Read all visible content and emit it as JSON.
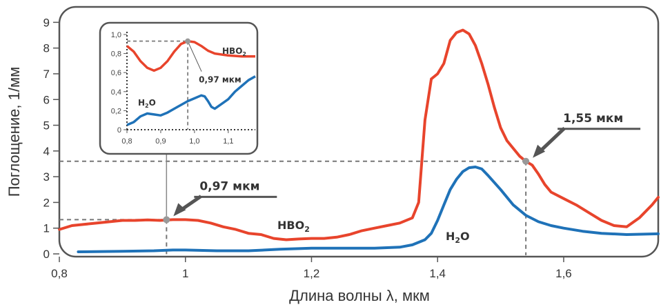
{
  "chart_data": {
    "type": "line",
    "xlabel": "Длина волны λ, мкм",
    "ylabel": "Поглощение, 1/мм",
    "xlim": [
      0.8,
      1.75
    ],
    "ylim": [
      0,
      9.6
    ],
    "xticks": [
      {
        "v": 0.8,
        "label": "0,8"
      },
      {
        "v": 1.0,
        "label": "1"
      },
      {
        "v": 1.2,
        "label": "1,2"
      },
      {
        "v": 1.4,
        "label": "1,4"
      },
      {
        "v": 1.6,
        "label": "1,6"
      }
    ],
    "yticks": [
      {
        "v": 0,
        "label": "0"
      },
      {
        "v": 1,
        "label": "1"
      },
      {
        "v": 2,
        "label": "2"
      },
      {
        "v": 3,
        "label": "3"
      },
      {
        "v": 4,
        "label": "4"
      },
      {
        "v": 5,
        "label": "5"
      },
      {
        "v": 6,
        "label": "6"
      },
      {
        "v": 7,
        "label": "7"
      },
      {
        "v": 8,
        "label": "8"
      },
      {
        "v": 9,
        "label": "9"
      }
    ],
    "grid": false,
    "series": [
      {
        "name": "HBO₂",
        "label_main": "HBO",
        "label_sub": "2",
        "color": "#e8442c",
        "points": [
          [
            0.8,
            0.95
          ],
          [
            0.82,
            1.1
          ],
          [
            0.84,
            1.15
          ],
          [
            0.86,
            1.2
          ],
          [
            0.88,
            1.25
          ],
          [
            0.9,
            1.3
          ],
          [
            0.92,
            1.3
          ],
          [
            0.94,
            1.32
          ],
          [
            0.96,
            1.3
          ],
          [
            0.98,
            1.33
          ],
          [
            1.0,
            1.33
          ],
          [
            1.02,
            1.3
          ],
          [
            1.04,
            1.2
          ],
          [
            1.06,
            1.05
          ],
          [
            1.08,
            0.95
          ],
          [
            1.1,
            0.8
          ],
          [
            1.12,
            0.75
          ],
          [
            1.14,
            0.6
          ],
          [
            1.16,
            0.55
          ],
          [
            1.18,
            0.58
          ],
          [
            1.2,
            0.6
          ],
          [
            1.22,
            0.6
          ],
          [
            1.24,
            0.65
          ],
          [
            1.26,
            0.75
          ],
          [
            1.28,
            0.9
          ],
          [
            1.3,
            1.0
          ],
          [
            1.32,
            1.1
          ],
          [
            1.34,
            1.2
          ],
          [
            1.36,
            1.4
          ],
          [
            1.37,
            2.0
          ],
          [
            1.38,
            5.2
          ],
          [
            1.39,
            6.8
          ],
          [
            1.4,
            7.0
          ],
          [
            1.41,
            7.4
          ],
          [
            1.42,
            8.3
          ],
          [
            1.43,
            8.6
          ],
          [
            1.44,
            8.7
          ],
          [
            1.45,
            8.55
          ],
          [
            1.46,
            8.1
          ],
          [
            1.47,
            7.4
          ],
          [
            1.48,
            6.6
          ],
          [
            1.49,
            5.7
          ],
          [
            1.5,
            4.9
          ],
          [
            1.51,
            4.4
          ],
          [
            1.52,
            4.1
          ],
          [
            1.53,
            3.8
          ],
          [
            1.54,
            3.6
          ],
          [
            1.55,
            3.45
          ],
          [
            1.56,
            3.1
          ],
          [
            1.57,
            2.7
          ],
          [
            1.58,
            2.4
          ],
          [
            1.6,
            2.15
          ],
          [
            1.62,
            1.9
          ],
          [
            1.64,
            1.6
          ],
          [
            1.66,
            1.3
          ],
          [
            1.68,
            1.1
          ],
          [
            1.7,
            1.05
          ],
          [
            1.72,
            1.4
          ],
          [
            1.74,
            1.9
          ],
          [
            1.75,
            2.2
          ]
        ]
      },
      {
        "name": "H₂O",
        "label_main": "H",
        "label_sub": "2",
        "label_tail": "O",
        "color": "#1f72b8",
        "points": [
          [
            0.83,
            0.08
          ],
          [
            0.9,
            0.1
          ],
          [
            0.95,
            0.12
          ],
          [
            0.98,
            0.15
          ],
          [
            1.0,
            0.15
          ],
          [
            1.05,
            0.12
          ],
          [
            1.1,
            0.12
          ],
          [
            1.15,
            0.18
          ],
          [
            1.2,
            0.22
          ],
          [
            1.25,
            0.22
          ],
          [
            1.3,
            0.22
          ],
          [
            1.34,
            0.26
          ],
          [
            1.36,
            0.35
          ],
          [
            1.38,
            0.55
          ],
          [
            1.39,
            0.8
          ],
          [
            1.4,
            1.3
          ],
          [
            1.41,
            1.9
          ],
          [
            1.42,
            2.5
          ],
          [
            1.43,
            2.9
          ],
          [
            1.44,
            3.2
          ],
          [
            1.45,
            3.35
          ],
          [
            1.46,
            3.38
          ],
          [
            1.47,
            3.3
          ],
          [
            1.48,
            3.05
          ],
          [
            1.5,
            2.5
          ],
          [
            1.52,
            1.9
          ],
          [
            1.54,
            1.5
          ],
          [
            1.56,
            1.25
          ],
          [
            1.58,
            1.1
          ],
          [
            1.6,
            1.0
          ],
          [
            1.63,
            0.88
          ],
          [
            1.66,
            0.8
          ],
          [
            1.7,
            0.75
          ],
          [
            1.75,
            0.78
          ]
        ]
      }
    ],
    "annotations": [
      {
        "text": "0,97 мкм",
        "x": 0.97,
        "y": 1.33
      },
      {
        "text": "1,55 мкм",
        "x": 1.54,
        "y": 3.6
      }
    ],
    "inset": {
      "xlim": [
        0.8,
        1.18
      ],
      "ylim": [
        0,
        1.0
      ],
      "xticks": [
        {
          "v": 0.8,
          "label": "0,8"
        },
        {
          "v": 0.9,
          "label": "0,9"
        },
        {
          "v": 1.0,
          "label": "1,0"
        },
        {
          "v": 1.1,
          "label": "1,1"
        }
      ],
      "yticks": [
        {
          "v": 0,
          "label": "0"
        },
        {
          "v": 0.2,
          "label": "0,2"
        },
        {
          "v": 0.4,
          "label": "0,4"
        },
        {
          "v": 0.6,
          "label": "0,6"
        },
        {
          "v": 0.8,
          "label": "0,8"
        },
        {
          "v": 1.0,
          "label": "1,0"
        }
      ],
      "annotation": {
        "text": "0,97 мкм",
        "x": 0.98,
        "y": 0.93
      },
      "hbo2_points": [
        [
          0.8,
          0.88
        ],
        [
          0.82,
          0.82
        ],
        [
          0.84,
          0.72
        ],
        [
          0.86,
          0.65
        ],
        [
          0.88,
          0.62
        ],
        [
          0.9,
          0.65
        ],
        [
          0.92,
          0.72
        ],
        [
          0.94,
          0.82
        ],
        [
          0.96,
          0.9
        ],
        [
          0.98,
          0.93
        ],
        [
          1.0,
          0.92
        ],
        [
          1.02,
          0.88
        ],
        [
          1.04,
          0.83
        ],
        [
          1.06,
          0.8
        ],
        [
          1.08,
          0.79
        ],
        [
          1.1,
          0.78
        ],
        [
          1.14,
          0.77
        ],
        [
          1.18,
          0.77
        ]
      ],
      "h2o_points": [
        [
          0.8,
          0.05
        ],
        [
          0.82,
          0.08
        ],
        [
          0.84,
          0.14
        ],
        [
          0.86,
          0.17
        ],
        [
          0.88,
          0.16
        ],
        [
          0.9,
          0.15
        ],
        [
          0.92,
          0.18
        ],
        [
          0.94,
          0.22
        ],
        [
          0.96,
          0.26
        ],
        [
          0.98,
          0.3
        ],
        [
          1.0,
          0.33
        ],
        [
          1.02,
          0.36
        ],
        [
          1.03,
          0.35
        ],
        [
          1.04,
          0.3
        ],
        [
          1.05,
          0.24
        ],
        [
          1.06,
          0.22
        ],
        [
          1.08,
          0.27
        ],
        [
          1.1,
          0.32
        ],
        [
          1.12,
          0.4
        ],
        [
          1.14,
          0.46
        ],
        [
          1.16,
          0.52
        ],
        [
          1.18,
          0.56
        ]
      ]
    }
  }
}
